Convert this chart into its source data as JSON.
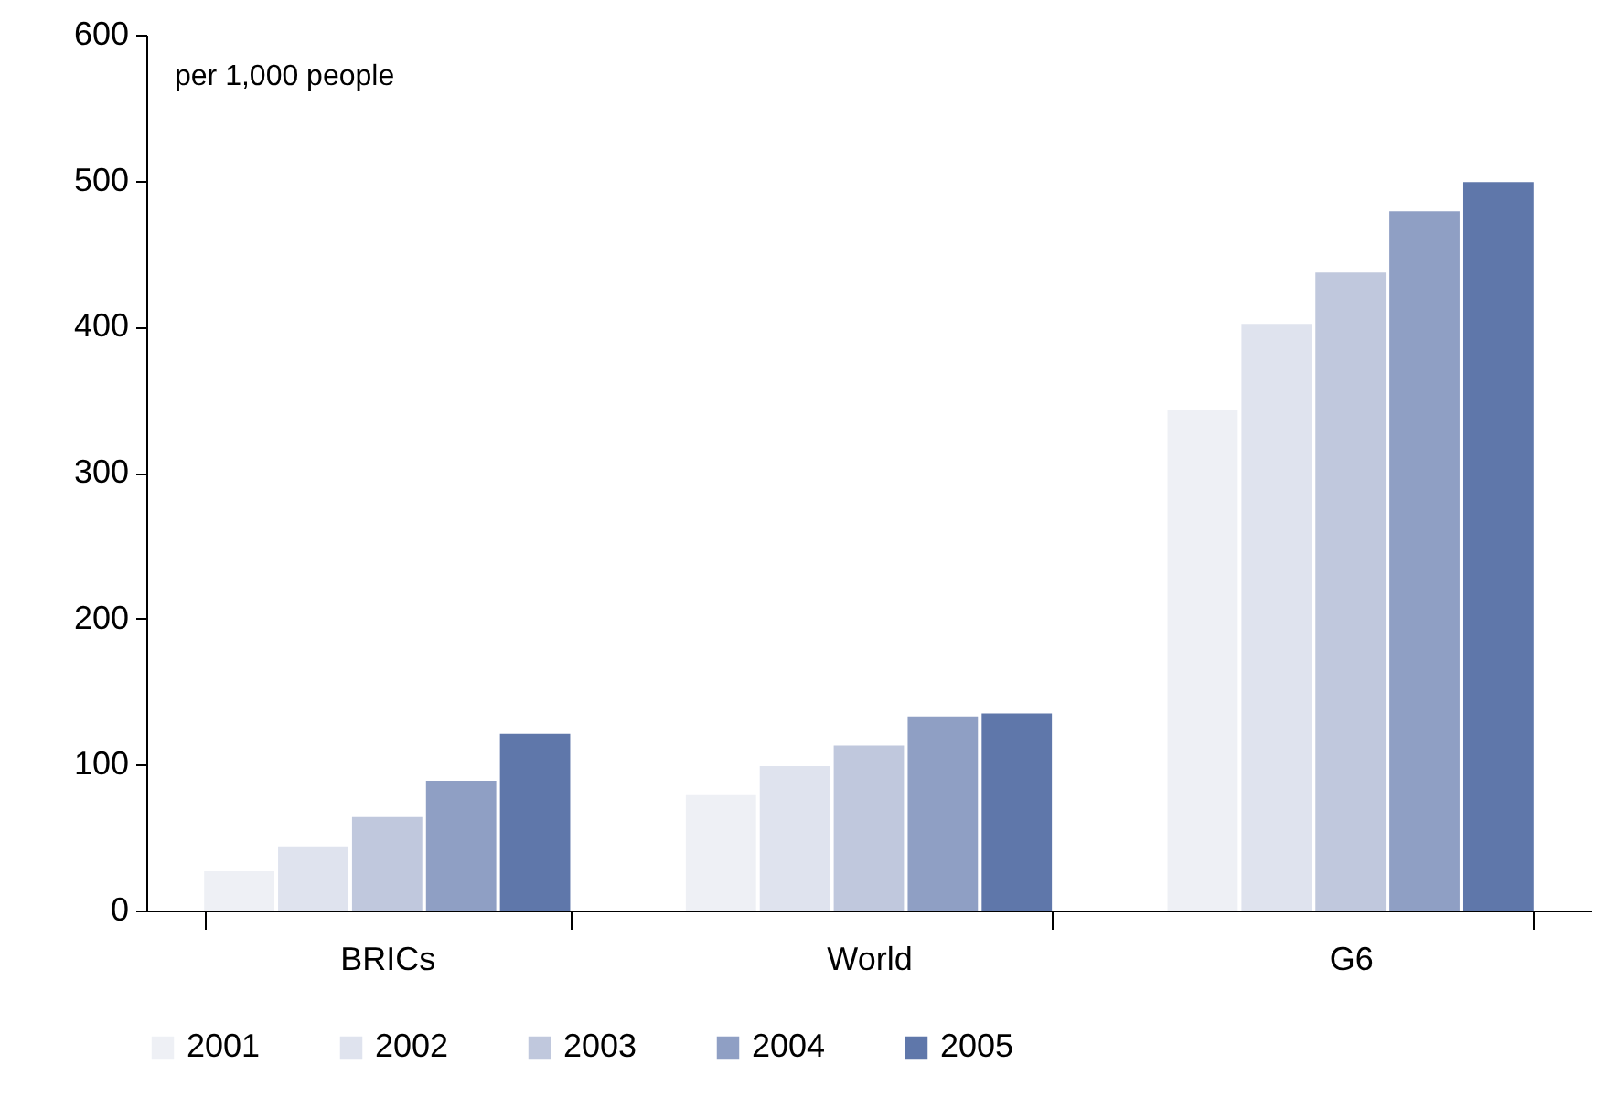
{
  "chart_data": {
    "type": "bar",
    "ylabel": "per 1,000 people",
    "categories": [
      "BRICs",
      "World",
      "G6"
    ],
    "series": [
      {
        "name": "2001",
        "color": "#eef0f5",
        "values": [
          27,
          79,
          343
        ]
      },
      {
        "name": "2002",
        "color": "#dfe3ee",
        "values": [
          44,
          99,
          402
        ]
      },
      {
        "name": "2003",
        "color": "#c0c8dd",
        "values": [
          64,
          113,
          437
        ]
      },
      {
        "name": "2004",
        "color": "#8f9fc4",
        "values": [
          89,
          133,
          479
        ]
      },
      {
        "name": "2005",
        "color": "#5f77aa",
        "values": [
          121,
          135,
          499
        ]
      }
    ],
    "ylim": [
      0,
      600
    ],
    "yticks": [
      0,
      100,
      200,
      300,
      400,
      500,
      600
    ],
    "grid": false,
    "legend": "bottom"
  }
}
